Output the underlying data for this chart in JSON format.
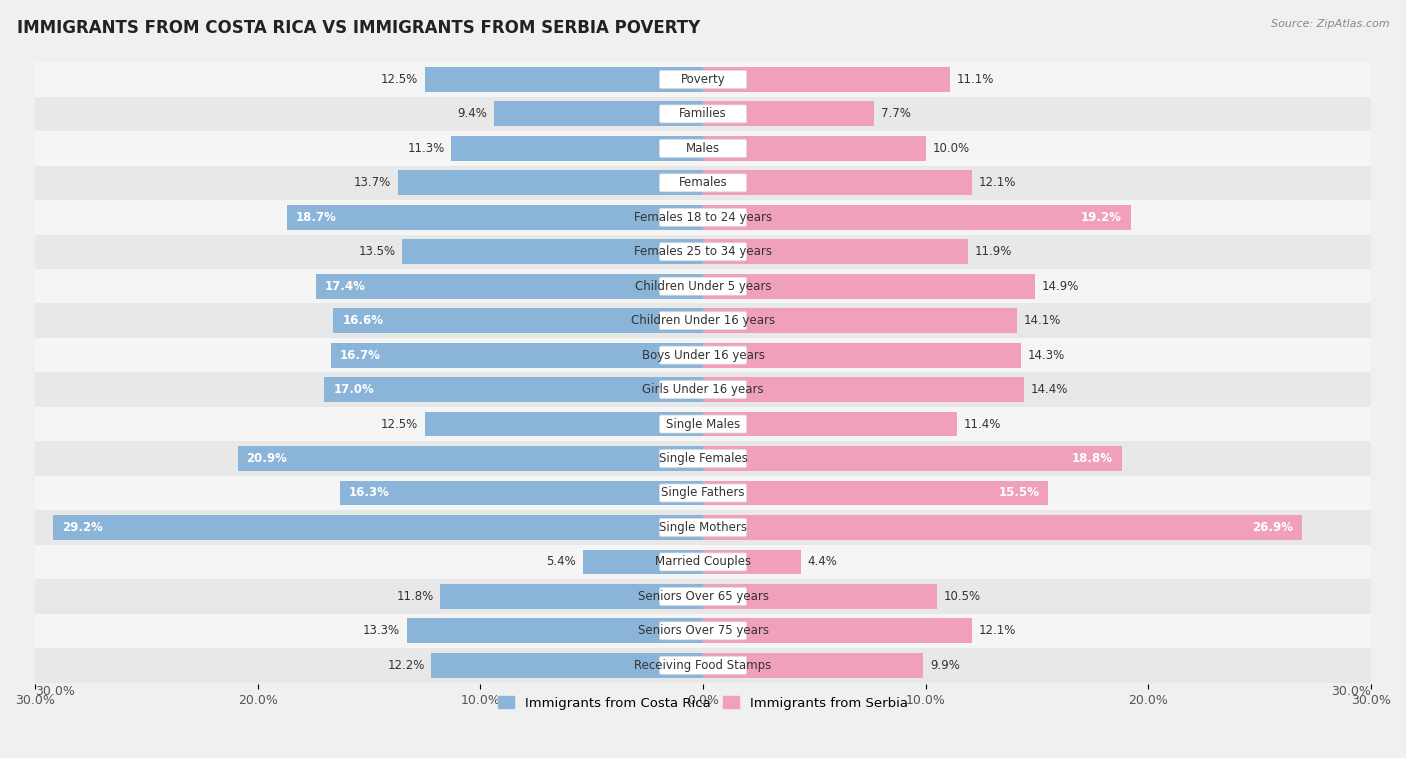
{
  "title": "IMMIGRANTS FROM COSTA RICA VS IMMIGRANTS FROM SERBIA POVERTY",
  "source": "Source: ZipAtlas.com",
  "categories": [
    "Poverty",
    "Families",
    "Males",
    "Females",
    "Females 18 to 24 years",
    "Females 25 to 34 years",
    "Children Under 5 years",
    "Children Under 16 years",
    "Boys Under 16 years",
    "Girls Under 16 years",
    "Single Males",
    "Single Females",
    "Single Fathers",
    "Single Mothers",
    "Married Couples",
    "Seniors Over 65 years",
    "Seniors Over 75 years",
    "Receiving Food Stamps"
  ],
  "costa_rica": [
    12.5,
    9.4,
    11.3,
    13.7,
    18.7,
    13.5,
    17.4,
    16.6,
    16.7,
    17.0,
    12.5,
    20.9,
    16.3,
    29.2,
    5.4,
    11.8,
    13.3,
    12.2
  ],
  "serbia": [
    11.1,
    7.7,
    10.0,
    12.1,
    19.2,
    11.9,
    14.9,
    14.1,
    14.3,
    14.4,
    11.4,
    18.8,
    15.5,
    26.9,
    4.4,
    10.5,
    12.1,
    9.9
  ],
  "costa_rica_color": "#8ab4d8",
  "serbia_color": "#f0a0bc",
  "row_color_even": "#f5f5f5",
  "row_color_odd": "#e8e8e8",
  "background_color": "#f0f0f0",
  "axis_max": 30.0,
  "legend_costa_rica": "Immigrants from Costa Rica",
  "legend_serbia": "Immigrants from Serbia",
  "bar_height": 0.72,
  "title_fontsize": 12,
  "label_fontsize": 8.5,
  "value_fontsize": 8.5,
  "axis_tick_fontsize": 9
}
